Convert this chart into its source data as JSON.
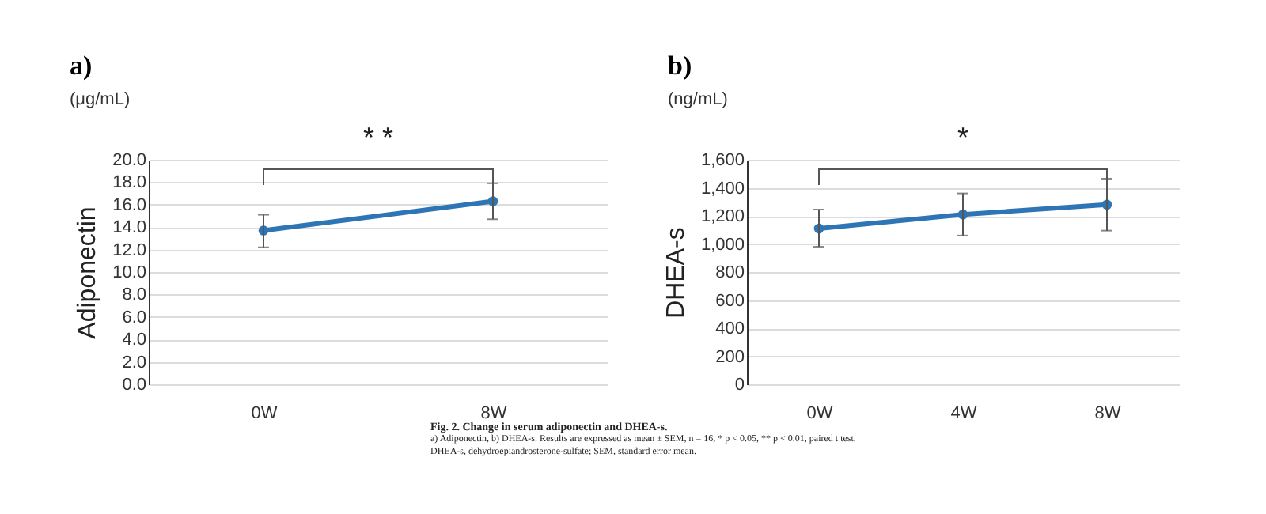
{
  "chart_data": [
    {
      "type": "line",
      "title": "a)",
      "subtitle": "(μg/mL)",
      "ylabel": "Adiponectin",
      "categories": [
        "0W",
        "8W"
      ],
      "series": [
        {
          "color": "#2e75b6",
          "values": [
            13.7,
            16.3
          ],
          "errors": [
            [
              12.2,
              15.1
            ],
            [
              14.7,
              17.9
            ]
          ]
        }
      ],
      "ylim": [
        0,
        20
      ],
      "yticks": [
        {
          "value": 0,
          "label": "0.0"
        },
        {
          "value": 2,
          "label": "2.0"
        },
        {
          "value": 4,
          "label": "4.0"
        },
        {
          "value": 6,
          "label": "6.0"
        },
        {
          "value": 8,
          "label": "8.0"
        },
        {
          "value": 10,
          "label": "10.0"
        },
        {
          "value": 12,
          "label": "12.0"
        },
        {
          "value": 14,
          "label": "14.0"
        },
        {
          "value": 16,
          "label": "16.0"
        },
        {
          "value": 18,
          "label": "18.0"
        },
        {
          "value": 20,
          "label": "20.0"
        }
      ],
      "grid": "y",
      "marker": "circle",
      "annotations": [
        "* *"
      ]
    },
    {
      "type": "line",
      "title": "b)",
      "subtitle": "(ng/mL)",
      "ylabel": "DHEA-s",
      "categories": [
        "0W",
        "4W",
        "8W"
      ],
      "series": [
        {
          "color": "#2e75b6",
          "values": [
            1110,
            1210,
            1280
          ],
          "errors": [
            [
              980,
              1245
            ],
            [
              1060,
              1360
            ],
            [
              1095,
              1465
            ]
          ]
        }
      ],
      "ylim": [
        0,
        1600
      ],
      "yticks": [
        0,
        200,
        400,
        600,
        800,
        {
          "value": 1000,
          "label": "1,000"
        },
        {
          "value": 1200,
          "label": "1,200"
        },
        {
          "value": 1400,
          "label": "1,400"
        },
        {
          "value": 1600,
          "label": "1,600"
        }
      ],
      "grid": "y",
      "marker": "circle",
      "annotations": [
        "*"
      ]
    },
    {
      "type": "other",
      "title": "Fig. 2. Change in serum adiponectin and DHEA-s.",
      "annotations": [
        "a) Adiponectin, b) DHEA-s. Results are expressed as mean ± SEM, n = 16, * p < 0.05, ** p < 0.01, paired t test.",
        "DHEA-s, dehydroepiandrosterone-sulfate; SEM, standard error mean."
      ]
    }
  ]
}
